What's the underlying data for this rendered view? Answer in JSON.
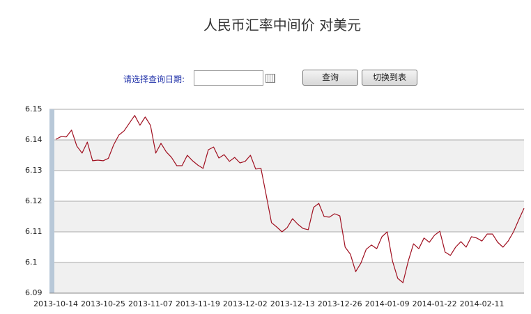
{
  "page": {
    "title": "人民币汇率中间价 对美元",
    "form": {
      "label": "请选择查询日期:",
      "buttons": [
        "查询",
        "切换到表"
      ]
    }
  },
  "chart_data": {
    "type": "line",
    "categories": [
      "2013-10-14",
      null,
      null,
      null,
      null,
      null,
      null,
      null,
      null,
      "2013-10-25",
      null,
      null,
      null,
      null,
      null,
      null,
      null,
      null,
      "2013-11-07",
      null,
      null,
      null,
      null,
      null,
      null,
      null,
      null,
      "2013-11-19",
      null,
      null,
      null,
      null,
      null,
      null,
      null,
      null,
      "2013-12-02",
      null,
      null,
      null,
      null,
      null,
      null,
      null,
      null,
      "2013-12-13",
      null,
      null,
      null,
      null,
      null,
      null,
      null,
      null,
      "2013-12-26",
      null,
      null,
      null,
      null,
      null,
      null,
      null,
      null,
      "2014-01-09",
      null,
      null,
      null,
      null,
      null,
      null,
      null,
      null,
      "2014-01-22",
      null,
      null,
      null,
      null,
      null,
      null,
      null,
      null,
      "2014-02-11",
      null,
      null,
      null,
      null,
      null,
      null,
      null,
      null
    ],
    "series": [
      {
        "color": "#a01020",
        "values": [
          6.1402,
          6.1411,
          6.141,
          6.1432,
          6.138,
          6.1357,
          6.1393,
          6.1332,
          6.1334,
          6.1332,
          6.134,
          6.1384,
          6.1416,
          6.143,
          6.1455,
          6.148,
          6.1448,
          6.1475,
          6.1448,
          6.1357,
          6.1389,
          6.1361,
          6.1343,
          6.1316,
          6.1316,
          6.135,
          6.1332,
          6.1318,
          6.1307,
          6.1368,
          6.1377,
          6.1341,
          6.1352,
          6.133,
          6.1343,
          6.1325,
          6.133,
          6.135,
          6.1305,
          6.1307,
          6.122,
          6.113,
          6.1116,
          6.11,
          6.1114,
          6.1143,
          6.1125,
          6.1111,
          6.1107,
          6.118,
          6.1193,
          6.115,
          6.1148,
          6.1159,
          6.1152,
          6.105,
          6.1027,
          6.097,
          6.0998,
          6.1043,
          6.1057,
          6.1045,
          6.1084,
          6.11,
          6.1005,
          6.0948,
          6.0934,
          6.1005,
          6.1061,
          6.1045,
          6.108,
          6.1066,
          6.1089,
          6.1102,
          6.1034,
          6.1023,
          6.105,
          6.1068,
          6.105,
          6.1084,
          6.108,
          6.107,
          6.1093,
          6.1093,
          6.1066,
          6.105,
          6.107,
          6.11,
          6.1139,
          6.1177
        ]
      }
    ],
    "ylim": [
      6.09,
      6.15
    ],
    "yticks": [
      6.09,
      6.1,
      6.11,
      6.12,
      6.13,
      6.14,
      6.15
    ],
    "grid": true
  }
}
